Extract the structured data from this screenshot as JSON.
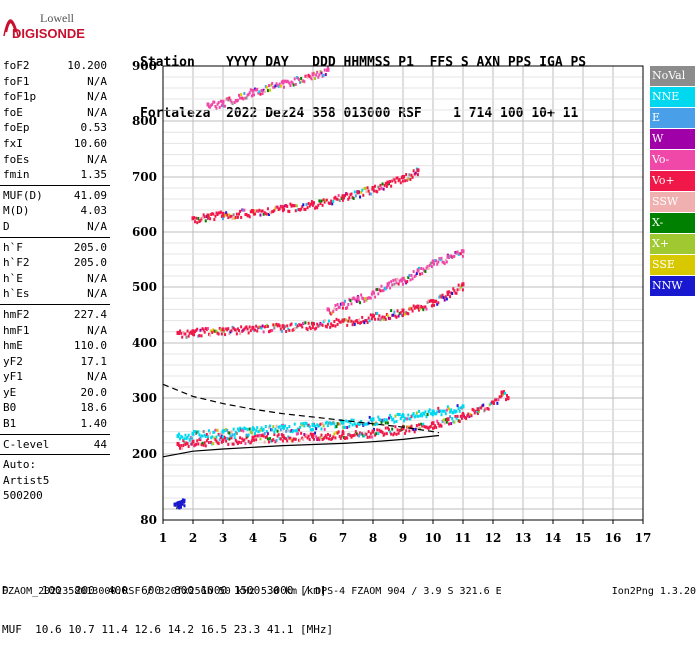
{
  "logo": {
    "brand": "Lowell",
    "product": "DIGISONDE"
  },
  "header": {
    "line1": "Station    YYYY DAY   DDD HHMMSS P1  FFS S AXN PPS IGA PS",
    "line2": "Fortaleza  2022 Dez24 358 013000 RSF    1 714 100 10+ 11"
  },
  "params": {
    "g1": [
      {
        "k": "foF2",
        "v": "10.200"
      },
      {
        "k": "foF1",
        "v": "N/A"
      },
      {
        "k": "foF1p",
        "v": "N/A"
      },
      {
        "k": "foE",
        "v": "N/A"
      },
      {
        "k": "foEp",
        "v": "0.53"
      },
      {
        "k": "fxI",
        "v": "10.60"
      },
      {
        "k": "foEs",
        "v": "N/A"
      },
      {
        "k": "fmin",
        "v": "1.35"
      }
    ],
    "g2": [
      {
        "k": "MUF(D)",
        "v": "41.09"
      },
      {
        "k": "M(D)",
        "v": "4.03"
      },
      {
        "k": "D",
        "v": "N/A"
      }
    ],
    "g3": [
      {
        "k": "h`F",
        "v": "205.0"
      },
      {
        "k": "h`F2",
        "v": "205.0"
      },
      {
        "k": "h`E",
        "v": "N/A"
      },
      {
        "k": "h`Es",
        "v": "N/A"
      }
    ],
    "g4": [
      {
        "k": "hmF2",
        "v": "227.4"
      },
      {
        "k": "hmF1",
        "v": "N/A"
      },
      {
        "k": "hmE",
        "v": "110.0"
      },
      {
        "k": "yF2",
        "v": "17.1"
      },
      {
        "k": "yF1",
        "v": "N/A"
      },
      {
        "k": "yE",
        "v": "20.0"
      },
      {
        "k": "B0",
        "v": "18.6"
      },
      {
        "k": "B1",
        "v": "1.40"
      }
    ],
    "g5": [
      {
        "k": "C-level",
        "v": "44"
      }
    ],
    "g6": [
      {
        "k": "Auto:",
        "v": ""
      },
      {
        "k": "Artist5",
        "v": ""
      },
      {
        "k": "500200",
        "v": ""
      }
    ]
  },
  "legend": [
    {
      "label": "NoVal",
      "color": "#8c8c8c"
    },
    {
      "label": "NNE",
      "color": "#00d8f0"
    },
    {
      "label": "E",
      "color": "#4aa0e8"
    },
    {
      "label": "W",
      "color": "#a000a8"
    },
    {
      "label": "Vo-",
      "color": "#f048a8"
    },
    {
      "label": "Vo+",
      "color": "#f01848"
    },
    {
      "label": "SSW",
      "color": "#f0b0b0"
    },
    {
      "label": "X-",
      "color": "#008000"
    },
    {
      "label": "X+",
      "color": "#a0c830"
    },
    {
      "label": "SSE",
      "color": "#d8c800"
    },
    {
      "label": "NNW",
      "color": "#1818d0"
    }
  ],
  "footer": {
    "d_line": "D     100  200  400  600  800 1000 1500 3000 [km]",
    "muf_line": "MUF  10.6 10.7 11.4 12.6 14.2 16.5 23.3 41.1 [MHz]",
    "file_line": "FZAOM_2022358013000.RSF / 320fx256h 50 kHz 5.0 km / DPS-4 FZAOM 904 / 3.9 S 321.6 E",
    "version": "Ion2Png 1.3.20"
  },
  "chart_data": {
    "type": "scatter",
    "x_range": [
      1,
      17
    ],
    "y_range": [
      80,
      900
    ],
    "x_ticks": [
      "1",
      "2",
      "3",
      "4",
      "5",
      "6",
      "7",
      "8",
      "9",
      "10",
      "11",
      "12",
      "13",
      "14",
      "15",
      "16",
      "17"
    ],
    "y_ticks": [
      "80",
      "200",
      "300",
      "400",
      "500",
      "600",
      "700",
      "800",
      "900"
    ],
    "grid": true,
    "legend_position": "right",
    "series": [
      {
        "name": "F2 trace 1 (h`F2)",
        "color": "#f01848",
        "points": [
          [
            1.5,
            218
          ],
          [
            2,
            222
          ],
          [
            3,
            226
          ],
          [
            4,
            229
          ],
          [
            5,
            232
          ],
          [
            6,
            234
          ],
          [
            7,
            237
          ],
          [
            8,
            240
          ],
          [
            9,
            246
          ],
          [
            10,
            255
          ],
          [
            10.5,
            262
          ],
          [
            11,
            270
          ],
          [
            11.5,
            280
          ],
          [
            12,
            292
          ],
          [
            12.3,
            310
          ],
          [
            12.5,
            300
          ]
        ]
      },
      {
        "name": "F2 trace 1 upper",
        "color": "#00d8f0",
        "points": [
          [
            1.5,
            232
          ],
          [
            2,
            236
          ],
          [
            3,
            240
          ],
          [
            4,
            244
          ],
          [
            5,
            248
          ],
          [
            6,
            252
          ],
          [
            7,
            256
          ],
          [
            8,
            262
          ],
          [
            9,
            268
          ],
          [
            10,
            276
          ],
          [
            11,
            285
          ]
        ]
      },
      {
        "name": "F2 trace 2",
        "color": "#f01848",
        "points": [
          [
            1.5,
            418
          ],
          [
            2,
            421
          ],
          [
            3,
            424
          ],
          [
            4,
            427
          ],
          [
            5,
            430
          ],
          [
            6,
            434
          ],
          [
            7,
            440
          ],
          [
            8,
            448
          ],
          [
            9,
            458
          ],
          [
            9.5,
            465
          ],
          [
            10,
            475
          ],
          [
            10.5,
            490
          ],
          [
            11,
            505
          ]
        ]
      },
      {
        "name": "F2 trace 2 upper",
        "color": "#f048a8",
        "points": [
          [
            6.5,
            460
          ],
          [
            7,
            470
          ],
          [
            7.5,
            480
          ],
          [
            8,
            490
          ],
          [
            8.5,
            505
          ],
          [
            9,
            515
          ],
          [
            9.5,
            530
          ],
          [
            10,
            545
          ],
          [
            10.5,
            555
          ],
          [
            11,
            565
          ]
        ]
      },
      {
        "name": "F2 trace 3",
        "color": "#f01848",
        "points": [
          [
            2,
            625
          ],
          [
            2.5,
            630
          ],
          [
            3,
            633
          ],
          [
            4,
            638
          ],
          [
            5,
            645
          ],
          [
            6,
            652
          ],
          [
            7,
            665
          ],
          [
            7.5,
            672
          ],
          [
            8,
            680
          ],
          [
            8.5,
            690
          ],
          [
            9,
            700
          ],
          [
            9.5,
            712
          ]
        ]
      },
      {
        "name": "F2 trace 4",
        "color": "#f048a8",
        "points": [
          [
            2.5,
            830
          ],
          [
            3,
            835
          ],
          [
            4,
            855
          ],
          [
            5,
            870
          ],
          [
            6,
            885
          ],
          [
            6.5,
            893
          ]
        ]
      },
      {
        "name": "profile lower",
        "color": "#000000",
        "points": [
          [
            1,
            195
          ],
          [
            2,
            205
          ],
          [
            3,
            209
          ],
          [
            4,
            212
          ],
          [
            5,
            215
          ],
          [
            6,
            217
          ],
          [
            7,
            219
          ],
          [
            8,
            222
          ],
          [
            9,
            226
          ],
          [
            10,
            232
          ],
          [
            10.2,
            233
          ]
        ]
      },
      {
        "name": "profile upper (dashed)",
        "color": "#000000",
        "points": [
          [
            1,
            325
          ],
          [
            2,
            303
          ],
          [
            3,
            290
          ],
          [
            4,
            280
          ],
          [
            5,
            272
          ],
          [
            6,
            266
          ],
          [
            7,
            260
          ],
          [
            8,
            254
          ],
          [
            9,
            248
          ],
          [
            10,
            240
          ],
          [
            10.2,
            238
          ]
        ]
      },
      {
        "name": "low echoes",
        "color": "#1818d0",
        "points": [
          [
            1.4,
            108
          ],
          [
            1.5,
            110
          ],
          [
            1.6,
            112
          ],
          [
            1.7,
            115
          ]
        ]
      }
    ]
  }
}
